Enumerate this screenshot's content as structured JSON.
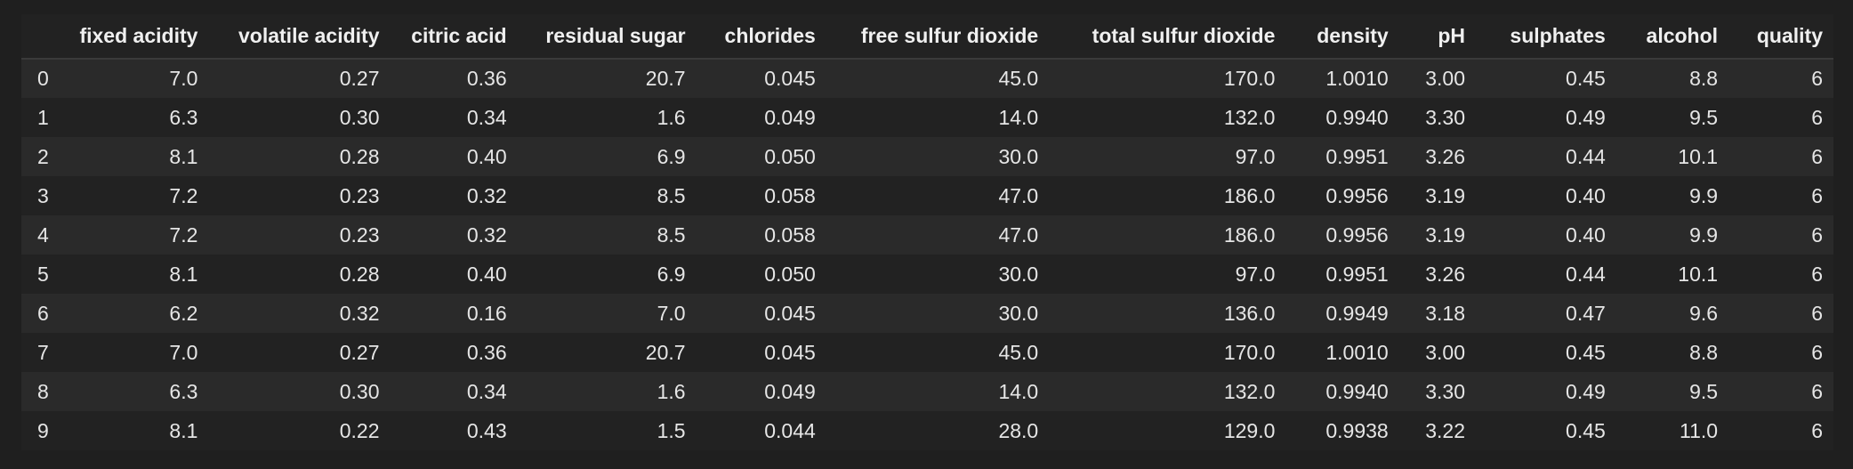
{
  "columns": [
    "",
    "fixed acidity",
    "volatile acidity",
    "citric acid",
    "residual sugar",
    "chlorides",
    "free sulfur dioxide",
    "total sulfur dioxide",
    "density",
    "pH",
    "sulphates",
    "alcohol",
    "quality"
  ],
  "rows": [
    [
      "0",
      "7.0",
      "0.27",
      "0.36",
      "20.7",
      "0.045",
      "45.0",
      "170.0",
      "1.0010",
      "3.00",
      "0.45",
      "8.8",
      "6"
    ],
    [
      "1",
      "6.3",
      "0.30",
      "0.34",
      "1.6",
      "0.049",
      "14.0",
      "132.0",
      "0.9940",
      "3.30",
      "0.49",
      "9.5",
      "6"
    ],
    [
      "2",
      "8.1",
      "0.28",
      "0.40",
      "6.9",
      "0.050",
      "30.0",
      "97.0",
      "0.9951",
      "3.26",
      "0.44",
      "10.1",
      "6"
    ],
    [
      "3",
      "7.2",
      "0.23",
      "0.32",
      "8.5",
      "0.058",
      "47.0",
      "186.0",
      "0.9956",
      "3.19",
      "0.40",
      "9.9",
      "6"
    ],
    [
      "4",
      "7.2",
      "0.23",
      "0.32",
      "8.5",
      "0.058",
      "47.0",
      "186.0",
      "0.9956",
      "3.19",
      "0.40",
      "9.9",
      "6"
    ],
    [
      "5",
      "8.1",
      "0.28",
      "0.40",
      "6.9",
      "0.050",
      "30.0",
      "97.0",
      "0.9951",
      "3.26",
      "0.44",
      "10.1",
      "6"
    ],
    [
      "6",
      "6.2",
      "0.32",
      "0.16",
      "7.0",
      "0.045",
      "30.0",
      "136.0",
      "0.9949",
      "3.18",
      "0.47",
      "9.6",
      "6"
    ],
    [
      "7",
      "7.0",
      "0.27",
      "0.36",
      "20.7",
      "0.045",
      "45.0",
      "170.0",
      "1.0010",
      "3.00",
      "0.45",
      "8.8",
      "6"
    ],
    [
      "8",
      "6.3",
      "0.30",
      "0.34",
      "1.6",
      "0.049",
      "14.0",
      "132.0",
      "0.9940",
      "3.30",
      "0.49",
      "9.5",
      "6"
    ],
    [
      "9",
      "8.1",
      "0.22",
      "0.43",
      "1.5",
      "0.044",
      "28.0",
      "129.0",
      "0.9938",
      "3.22",
      "0.45",
      "11.0",
      "6"
    ]
  ]
}
